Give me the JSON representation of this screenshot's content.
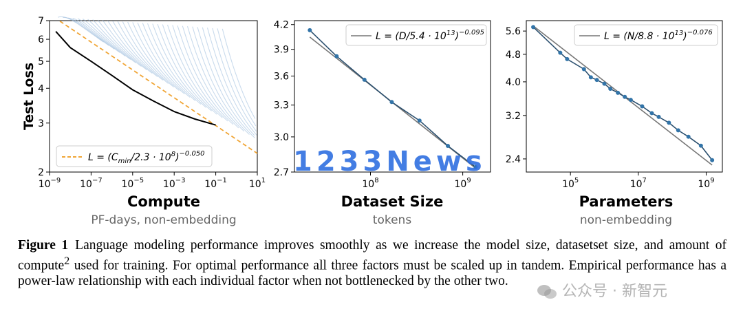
{
  "chart_data": [
    {
      "type": "line",
      "panel": "compute",
      "xlabel": "Compute",
      "xsublabel": "PF-days, non-embedding",
      "ylabel": "Test Loss",
      "xscale": "log",
      "yscale": "log",
      "xlim": [
        1e-09,
        10
      ],
      "ylim": [
        2,
        7
      ],
      "x_ticks": [
        "10^-9",
        "10^-7",
        "10^-5",
        "10^-3",
        "10^-1",
        "10^1"
      ],
      "y_ticks": [
        "2",
        "3",
        "4",
        "5",
        "6",
        "7"
      ],
      "legend": {
        "label_parts": [
          "L = (C",
          "min",
          "/2.3 · 10",
          "8",
          ")",
          "−0.050"
        ],
        "placement": "lower-left"
      },
      "fit": {
        "C0": 230000000.0,
        "alpha": 0.05,
        "style": "dashed",
        "color": "#f0a535"
      },
      "frontier": {
        "x": [
          2e-09,
          1e-08,
          1e-07,
          1e-06,
          1e-05,
          0.0001,
          0.001,
          0.01,
          0.1
        ],
        "y": [
          6.4,
          5.6,
          5.0,
          4.45,
          3.95,
          3.6,
          3.3,
          3.1,
          2.95
        ]
      },
      "learning_curves_color": "#9bbcdc"
    },
    {
      "type": "line",
      "panel": "dataset",
      "xlabel": "Dataset Size",
      "xsublabel": "tokens",
      "xscale": "log",
      "yscale": "log",
      "xlim": [
        15000000.0,
        2000000000.0
      ],
      "ylim": [
        2.7,
        4.25
      ],
      "x_ticks": [
        "10^8",
        "10^9"
      ],
      "y_ticks": [
        "2.7",
        "3.0",
        "3.3",
        "3.6",
        "3.9",
        "4.2"
      ],
      "legend": {
        "label_parts": [
          "L = (D/5.4 · 10",
          "13",
          ")",
          "−0.095"
        ],
        "placement": "top-right"
      },
      "fit": {
        "C0": 54000000000000.0,
        "alpha": 0.095
      },
      "points": {
        "x": [
          22000000.0,
          43000000.0,
          86000000.0,
          170000000.0,
          340000000.0,
          690000000.0,
          1380000000.0
        ],
        "y": [
          4.13,
          3.82,
          3.56,
          3.33,
          3.15,
          2.92,
          2.74
        ]
      }
    },
    {
      "type": "line",
      "panel": "parameters",
      "xlabel": "Parameters",
      "xsublabel": "non-embedding",
      "xscale": "log",
      "yscale": "log",
      "xlim": [
        5000.0,
        3000000000.0
      ],
      "ylim": [
        2.2,
        6.0
      ],
      "x_ticks": [
        "10^5",
        "10^7",
        "10^9"
      ],
      "y_ticks": [
        "2.4",
        "3.2",
        "4.0",
        "4.8",
        "5.6"
      ],
      "legend": {
        "label_parts": [
          "L = (N/8.8 · 10",
          "13",
          ")",
          "−0.076"
        ],
        "placement": "top-right"
      },
      "fit": {
        "C0": 88000000000000.0,
        "alpha": 0.076
      },
      "points": {
        "x": [
          8000.0,
          50000.0,
          80000.0,
          250000.0,
          400000.0,
          600000.0,
          1000000.0,
          1500000.0,
          2500000.0,
          4000000.0,
          6000000.0,
          13000000.0,
          25000000.0,
          40000000.0,
          80000000.0,
          150000000.0,
          300000000.0,
          700000000.0,
          1500000000.0
        ],
        "y": [
          5.75,
          4.85,
          4.65,
          4.35,
          4.12,
          4.05,
          3.95,
          3.82,
          3.72,
          3.62,
          3.55,
          3.4,
          3.25,
          3.17,
          3.05,
          2.9,
          2.78,
          2.62,
          2.38
        ]
      }
    }
  ],
  "caption": {
    "figure_label": "Figure 1",
    "text_before_sup": "Language modeling performance improves smoothly as we increase the model size, datasetset size, and amount of compute",
    "superscript": "2",
    "text_after_sup": " used for training. For optimal performance all three factors must be scaled up in tandem. Empirical performance has a power-law relationship with each individual factor when not bottlenecked by the other two."
  },
  "watermarks": {
    "overlay_text": "1233News",
    "overlay_color": "#2f6fe0",
    "source_text": "公众号 · 新智元"
  },
  "colors": {
    "point_color": "#3274a8",
    "line_color": "#2b4f6e",
    "fit_line_color": "#777777",
    "frontier_color": "#000000"
  }
}
